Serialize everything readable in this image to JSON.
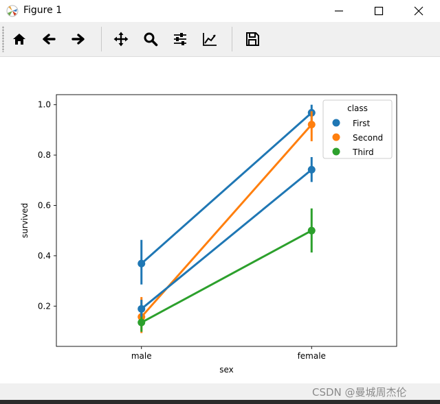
{
  "window": {
    "title": "Figure 1"
  },
  "toolbar": {
    "buttons": [
      {
        "name": "home-button",
        "icon": "home-icon"
      },
      {
        "name": "back-button",
        "icon": "arrow-left-icon"
      },
      {
        "name": "forward-button",
        "icon": "arrow-right-icon"
      },
      {
        "name": "pan-button",
        "icon": "move-icon"
      },
      {
        "name": "zoom-button",
        "icon": "magnifier-icon"
      },
      {
        "name": "subplots-button",
        "icon": "sliders-icon"
      },
      {
        "name": "axes-edit-button",
        "icon": "chart-line-icon"
      },
      {
        "name": "save-button",
        "icon": "floppy-disk-icon"
      }
    ]
  },
  "chart_data": {
    "type": "line",
    "xlabel": "sex",
    "ylabel": "survived",
    "categories": [
      "male",
      "female"
    ],
    "ylim": [
      0.04,
      1.04
    ],
    "yticks": [
      0.2,
      0.4,
      0.6,
      0.8,
      1.0
    ],
    "ytick_labels": [
      "0.2",
      "0.4",
      "0.6",
      "0.8",
      "1.0"
    ],
    "legend": {
      "title": "class",
      "placement": "upper right"
    },
    "grid": false,
    "series": [
      {
        "name": "First",
        "color": "#1f77b4",
        "values": [
          0.369,
          0.968
        ],
        "ci_low": [
          0.286,
          0.935
        ],
        "ci_high": [
          0.463,
          1.0
        ]
      },
      {
        "name": "Second",
        "color": "#ff7f0e",
        "values": [
          0.157,
          0.921
        ],
        "ci_low": [
          0.093,
          0.855
        ],
        "ci_high": [
          0.236,
          0.974
        ]
      },
      {
        "name": "Third",
        "color": "#2ca02c",
        "values": [
          0.135,
          0.5
        ],
        "ci_low": [
          0.098,
          0.413
        ],
        "ci_high": [
          0.176,
          0.588
        ]
      },
      {
        "name": "",
        "color": "#1f77b4",
        "values": [
          0.189,
          0.742
        ],
        "ci_low": [
          0.158,
          0.693
        ],
        "ci_high": [
          0.225,
          0.792
        ]
      }
    ]
  },
  "watermark": {
    "text": "CSDN @曼城周杰伦"
  }
}
